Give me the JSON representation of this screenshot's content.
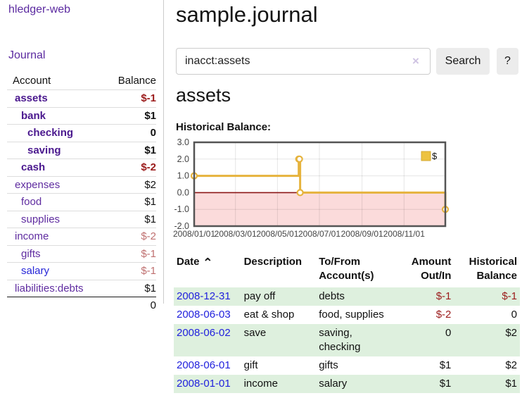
{
  "sidebar": {
    "brand": "hledger-web",
    "journal_link": "Journal",
    "accounts": {
      "header": {
        "account": "Account",
        "balance": "Balance"
      },
      "rows": [
        {
          "label": "assets",
          "balance": "$-1",
          "depth": 0,
          "bold": true
        },
        {
          "label": "bank",
          "balance": "$1",
          "depth": 1,
          "bold": true
        },
        {
          "label": "checking",
          "balance": "0",
          "depth": 2,
          "bold": true
        },
        {
          "label": "saving",
          "balance": "$1",
          "depth": 2,
          "bold": true
        },
        {
          "label": "cash",
          "balance": "$-2",
          "depth": 1,
          "bold": true
        },
        {
          "label": "expenses",
          "balance": "$2",
          "depth": 0,
          "bold": false
        },
        {
          "label": "food",
          "balance": "$1",
          "depth": 1,
          "bold": false
        },
        {
          "label": "supplies",
          "balance": "$1",
          "depth": 1,
          "bold": false
        },
        {
          "label": "income",
          "balance": "$-2",
          "depth": 0,
          "bold": false
        },
        {
          "label": "gifts",
          "balance": "$-1",
          "depth": 1,
          "bold": false
        },
        {
          "label": "salary",
          "balance": "$-1",
          "depth": 1,
          "bold": false,
          "blue": true
        },
        {
          "label": "liabilities:debts",
          "balance": "$1",
          "depth": 0,
          "bold": false
        }
      ],
      "total": "0"
    }
  },
  "main": {
    "title": "sample.journal",
    "search": {
      "value": "inacct:assets",
      "clear_icon": "×",
      "button_label": "Search",
      "help_label": "?"
    },
    "account_heading": "assets",
    "chart_heading": "Historical Balance:",
    "register": {
      "headers": {
        "date": "Date",
        "sort_icon": "⌃",
        "description": "Description",
        "tofrom": "To/From Account(s)",
        "amount": "Amount Out/In",
        "balance": "Historical Balance"
      },
      "rows": [
        {
          "date": "2008-12-31",
          "description": "pay off",
          "accounts": "debts",
          "amount": "$-1",
          "balance": "$-1"
        },
        {
          "date": "2008-06-03",
          "description": "eat & shop",
          "accounts": "food, supplies",
          "amount": "$-2",
          "balance": "0"
        },
        {
          "date": "2008-06-02",
          "description": "save",
          "accounts": "saving, checking",
          "amount": "0",
          "balance": "$2"
        },
        {
          "date": "2008-06-01",
          "description": "gift",
          "accounts": "gifts",
          "amount": "$1",
          "balance": "$2"
        },
        {
          "date": "2008-01-01",
          "description": "income",
          "accounts": "salary",
          "amount": "$1",
          "balance": "$1"
        }
      ]
    }
  },
  "chart_data": {
    "type": "line",
    "step": true,
    "title": "Historical Balance",
    "legend": "$",
    "legend_position": "top-right",
    "series": [
      {
        "name": "$",
        "color": "#e6b33d",
        "points": [
          [
            "2008-01-01",
            1
          ],
          [
            "2008-06-01",
            2
          ],
          [
            "2008-06-02",
            2
          ],
          [
            "2008-06-03",
            0
          ],
          [
            "2008-12-31",
            -1
          ]
        ]
      }
    ],
    "x_range": [
      "2008-01-01",
      "2008-12-31"
    ],
    "x_ticks": [
      {
        "date": "2008-01-01",
        "label": "2008/01/01"
      },
      {
        "date": "2008-03-01",
        "label": "2008/03/01"
      },
      {
        "date": "2008-05-01",
        "label": "2008/05/01"
      },
      {
        "date": "2008-07-01",
        "label": "2008/07/01"
      },
      {
        "date": "2008-09-01",
        "label": "2008/09/01"
      },
      {
        "date": "2008-11-01",
        "label": "2008/11/01"
      }
    ],
    "y_ticks": [
      3.0,
      2.0,
      1.0,
      0.0,
      -1.0,
      -2.0
    ],
    "ylim": [
      -2,
      3
    ],
    "grid": true,
    "colors": {
      "line": "#e6b33d",
      "marker_fill": "#ffffff",
      "negative_region": "#fbdbdb",
      "zero_line": "#8c1717",
      "border": "#545454",
      "tick_text": "#454545",
      "legend_fill": "#edc240",
      "legend_border": "#d4aa33"
    }
  }
}
